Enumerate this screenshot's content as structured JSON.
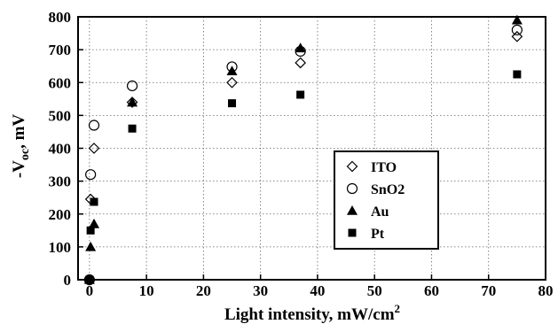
{
  "chart_data": {
    "type": "scatter",
    "xlabel": "Light intensity, mW/cm",
    "xlabel_sup": "2",
    "ylabel_parts": [
      "-V",
      "oc",
      ", mV"
    ],
    "xlim": [
      -2,
      80
    ],
    "ylim": [
      0,
      800
    ],
    "xticks": [
      0,
      10,
      20,
      30,
      40,
      50,
      60,
      70,
      80
    ],
    "yticks": [
      0,
      100,
      200,
      300,
      400,
      500,
      600,
      700,
      800
    ],
    "grid": true,
    "legend_position": "right",
    "series": [
      {
        "name": "ITO",
        "marker": "diamond-open",
        "x": [
          0,
          0.2,
          0.8,
          7.5,
          25,
          37,
          75
        ],
        "y": [
          0,
          245,
          400,
          540,
          600,
          660,
          740
        ]
      },
      {
        "name": "SnO2",
        "marker": "circle-open",
        "x": [
          0,
          0.2,
          0.8,
          7.5,
          25,
          37,
          75
        ],
        "y": [
          0,
          320,
          470,
          590,
          648,
          695,
          760
        ]
      },
      {
        "name": "Au",
        "marker": "triangle-filled",
        "x": [
          0,
          0.2,
          0.8,
          7.5,
          25,
          37,
          75
        ],
        "y": [
          0,
          100,
          170,
          540,
          635,
          705,
          790
        ]
      },
      {
        "name": "Pt",
        "marker": "square-filled",
        "x": [
          0,
          0.2,
          0.8,
          7.5,
          25,
          37,
          75
        ],
        "y": [
          0,
          150,
          237,
          460,
          537,
          563,
          625
        ]
      }
    ]
  }
}
